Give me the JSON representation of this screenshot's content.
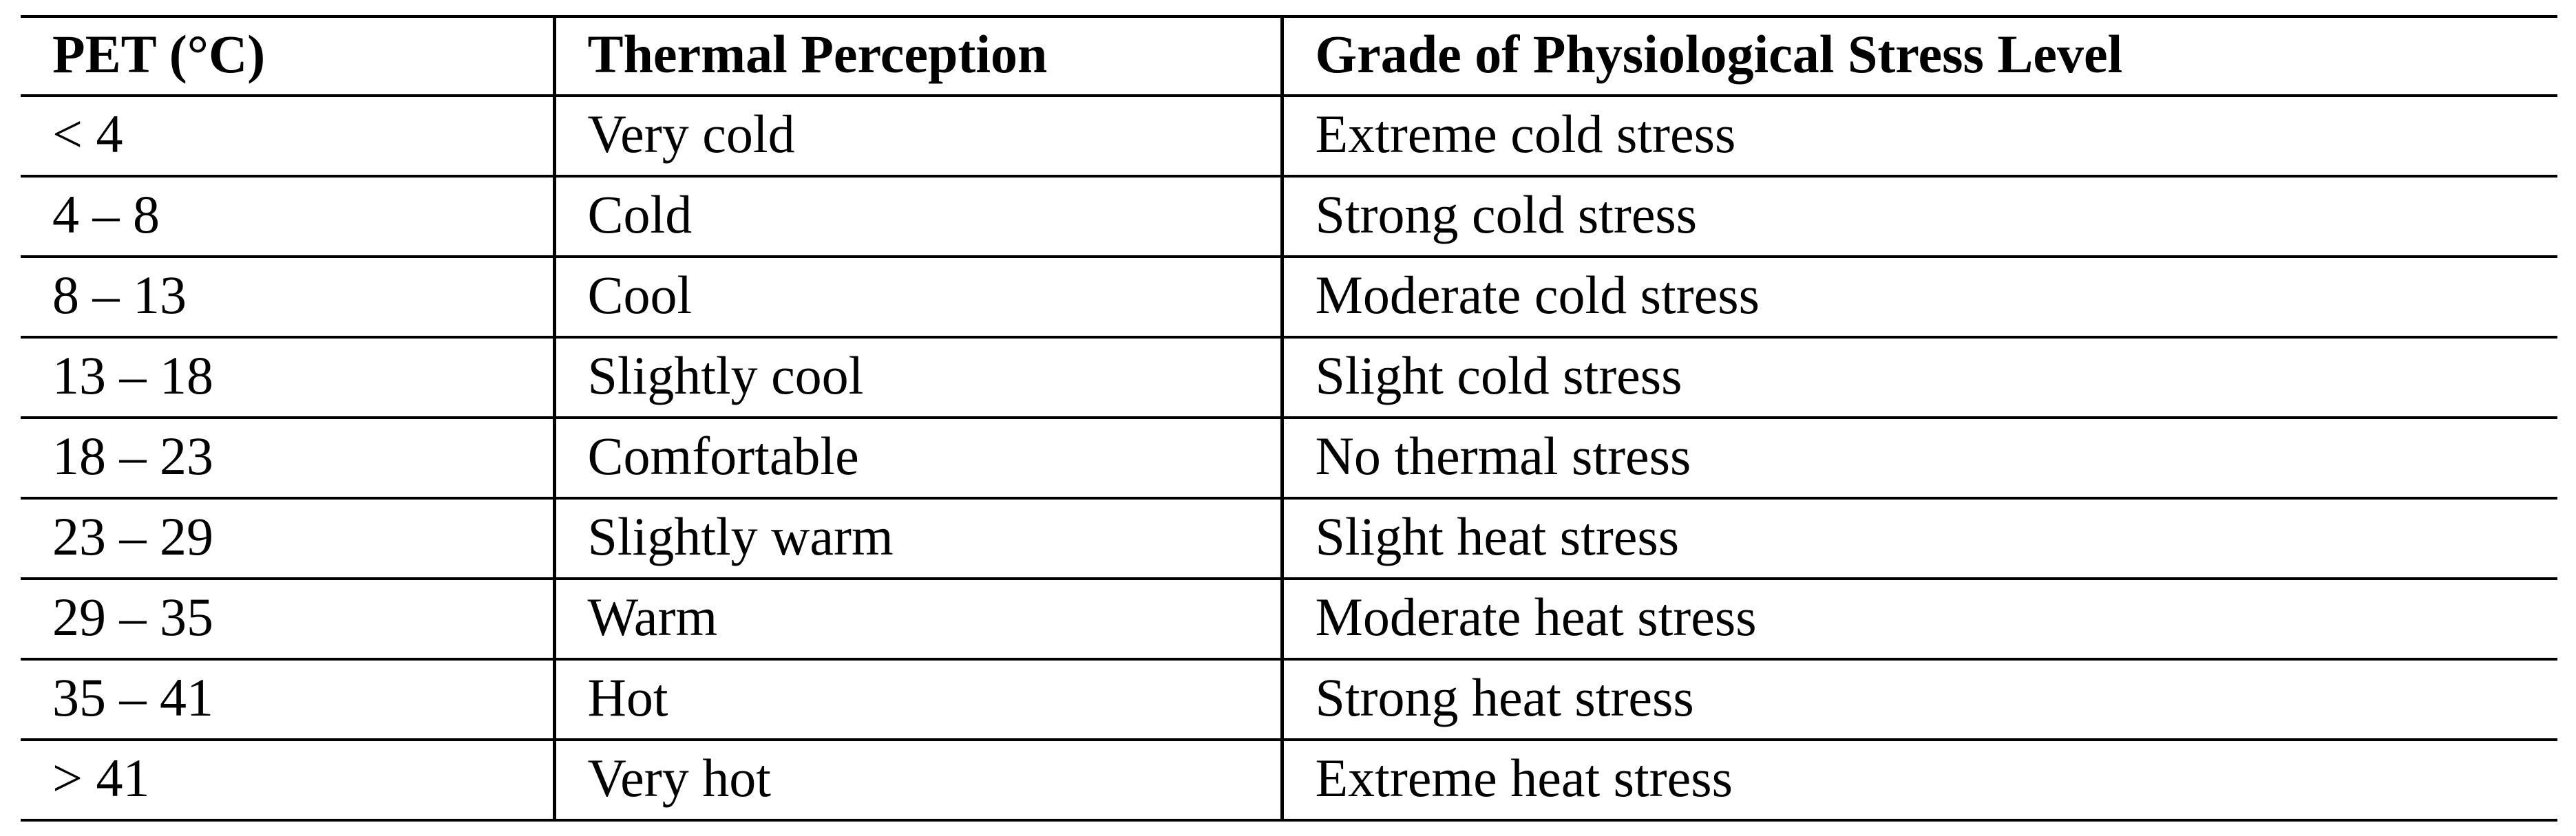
{
  "table": {
    "columns": [
      "PET (°C)",
      "Thermal Perception",
      "Grade of Physiological Stress Level"
    ],
    "rows": [
      [
        "< 4",
        "Very cold",
        "Extreme cold stress"
      ],
      [
        "4 – 8",
        "Cold",
        "Strong cold stress"
      ],
      [
        "8 – 13",
        "Cool",
        "Moderate cold stress"
      ],
      [
        "13 – 18",
        "Slightly cool",
        "Slight cold stress"
      ],
      [
        "18 – 23",
        "Comfortable",
        "No thermal stress"
      ],
      [
        "23 – 29",
        "Slightly warm",
        "Slight heat stress"
      ],
      [
        "29 – 35",
        "Warm",
        "Moderate heat stress"
      ],
      [
        "35 – 41",
        "Hot",
        "Strong heat stress"
      ],
      [
        "> 41",
        "Very hot",
        "Extreme heat stress"
      ]
    ],
    "colors": {
      "border": "#000000",
      "background": "#ffffff",
      "text": "#000000"
    }
  }
}
